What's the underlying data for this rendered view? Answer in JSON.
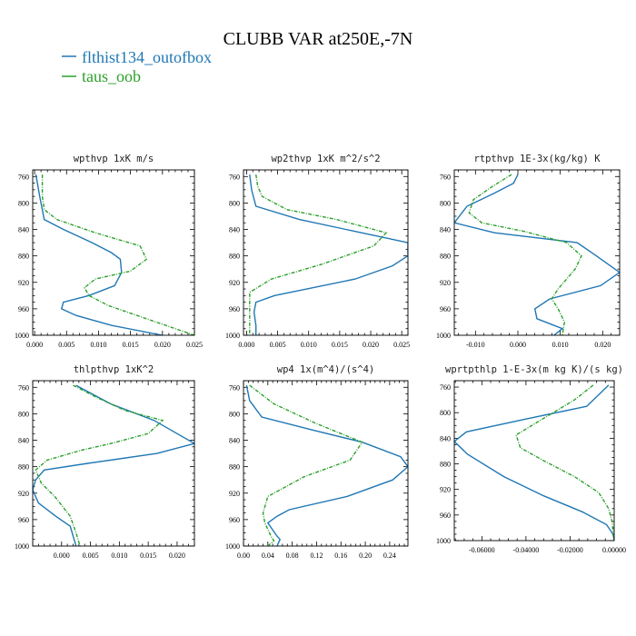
{
  "title": "CLUBB VAR at250E,-7N",
  "legend": {
    "placement": "top-left",
    "entries": [
      {
        "name": "flthist134_outofbox",
        "color": "#1f77b4",
        "dash": "solid"
      },
      {
        "name": "taus_oob",
        "color": "#2ca02c",
        "dash": "dashed"
      }
    ]
  },
  "chart_data": [
    {
      "type": "line",
      "title": "wpthvp  1xK m/s",
      "ylim": [
        1000,
        750
      ],
      "xlim": [
        -0.0003,
        0.025
      ],
      "yticks": [
        760,
        800,
        840,
        880,
        920,
        960,
        1000
      ],
      "xticks": [
        0.0,
        0.005,
        0.01,
        0.015,
        0.02,
        0.025
      ],
      "xtick_labels": [
        "0.000",
        "0.005",
        "0.010",
        "0.015",
        "0.020",
        "0.025"
      ],
      "series": [
        {
          "name": "flthist134_outofbox",
          "x": [
            0.0002,
            0.0008,
            0.0015,
            0.0045,
            0.009,
            0.012,
            0.0134,
            0.0136,
            0.0125,
            0.0085,
            0.0045,
            0.0042,
            0.0065,
            0.012,
            0.02
          ],
          "y": [
            757,
            790,
            825,
            840,
            860,
            875,
            885,
            905,
            925,
            940,
            950,
            960,
            970,
            985,
            1000
          ]
        },
        {
          "name": "taus_oob",
          "x": [
            0.0012,
            0.0012,
            0.0015,
            0.0035,
            0.0095,
            0.0165,
            0.0175,
            0.015,
            0.0095,
            0.0078,
            0.0085,
            0.0115,
            0.0175,
            0.025
          ],
          "y": [
            757,
            790,
            810,
            825,
            845,
            865,
            885,
            903,
            915,
            928,
            940,
            955,
            975,
            1000
          ]
        }
      ]
    },
    {
      "type": "line",
      "title": "wp2thvp  1xK m^2/s^2",
      "ylim": [
        1000,
        750
      ],
      "xlim": [
        -0.0005,
        0.026
      ],
      "yticks": [
        760,
        800,
        840,
        880,
        920,
        960,
        1000
      ],
      "xticks": [
        0.0,
        0.005,
        0.01,
        0.015,
        0.02,
        0.025
      ],
      "xtick_labels": [
        "0.000",
        "0.005",
        "0.010",
        "0.015",
        "0.020",
        "0.025"
      ],
      "series": [
        {
          "name": "flthist134_outofbox",
          "x": [
            0.0005,
            0.0008,
            0.0015,
            0.0085,
            0.016,
            0.026,
            0.026,
            0.0235,
            0.0175,
            0.0045,
            0.0015,
            0.0012,
            0.0015,
            0.0015
          ],
          "y": [
            757,
            780,
            805,
            825,
            840,
            860,
            880,
            895,
            915,
            940,
            950,
            965,
            985,
            1000
          ]
        },
        {
          "name": "taus_oob",
          "x": [
            0.0015,
            0.0018,
            0.0025,
            0.0065,
            0.0145,
            0.0225,
            0.0205,
            0.012,
            0.004,
            0.0005,
            0.0005,
            0.0005
          ],
          "y": [
            757,
            775,
            790,
            810,
            825,
            845,
            865,
            893,
            915,
            935,
            960,
            1000
          ]
        }
      ]
    },
    {
      "type": "line",
      "title": "rtpthvp  1E-3x(kg/kg) K",
      "ylim": [
        1000,
        750
      ],
      "xlim": [
        -0.015,
        0.024
      ],
      "yticks": [
        760,
        800,
        840,
        880,
        920,
        960,
        1000
      ],
      "xticks": [
        -0.01,
        0.0,
        0.01,
        0.02
      ],
      "xtick_labels": [
        "-0.010",
        "0.000",
        "0.010",
        "0.020"
      ],
      "series": [
        {
          "name": "flthist134_outofbox",
          "x": [
            0.0,
            -0.001,
            -0.0055,
            -0.012,
            -0.015,
            -0.0055,
            0.014,
            0.0185,
            0.024,
            0.0195,
            0.0075,
            0.004,
            0.0045,
            0.0105,
            0.0085
          ],
          "y": [
            757,
            770,
            785,
            805,
            830,
            845,
            860,
            880,
            905,
            925,
            945,
            960,
            975,
            990,
            1000
          ]
        },
        {
          "name": "taus_oob",
          "x": [
            -0.0015,
            -0.006,
            -0.0105,
            -0.0115,
            -0.0085,
            0.0015,
            0.0115,
            0.015,
            0.0135,
            0.0095,
            0.008,
            0.0095,
            0.011,
            0.0105
          ],
          "y": [
            757,
            775,
            795,
            815,
            830,
            843,
            860,
            880,
            900,
            930,
            945,
            960,
            980,
            1000
          ]
        }
      ]
    },
    {
      "type": "line",
      "title": "thlpthvp  1xK^2",
      "ylim": [
        1000,
        750
      ],
      "xlim": [
        -0.005,
        0.023
      ],
      "yticks": [
        760,
        800,
        840,
        880,
        920,
        960,
        1000
      ],
      "xticks": [
        0.0,
        0.005,
        0.01,
        0.015,
        0.02
      ],
      "xtick_labels": [
        "0.000",
        "0.005",
        "0.010",
        "0.015",
        "0.020"
      ],
      "series": [
        {
          "name": "flthist134_outofbox",
          "x": [
            0.0025,
            0.0085,
            0.016,
            0.023,
            0.0165,
            0.0045,
            -0.003,
            -0.0045,
            -0.005,
            -0.004,
            -0.001,
            0.0015,
            0.002,
            0.0025
          ],
          "y": [
            757,
            785,
            810,
            845,
            860,
            875,
            885,
            900,
            915,
            935,
            955,
            970,
            985,
            1000
          ]
        },
        {
          "name": "taus_oob",
          "x": [
            0.002,
            0.006,
            0.011,
            0.0175,
            0.015,
            0.0085,
            0.0035,
            -0.0025,
            -0.0045,
            -0.0035,
            -0.0012,
            0.0015,
            0.0025,
            0.0032
          ],
          "y": [
            757,
            775,
            795,
            810,
            830,
            845,
            855,
            870,
            885,
            905,
            925,
            955,
            980,
            1000
          ]
        }
      ]
    },
    {
      "type": "line",
      "title": "wp4  1x(m^4)/(s^4)",
      "ylim": [
        1000,
        750
      ],
      "xlim": [
        0.0,
        0.27
      ],
      "yticks": [
        760,
        800,
        840,
        880,
        920,
        960,
        1000
      ],
      "xticks": [
        0.0,
        0.04,
        0.08,
        0.12,
        0.16,
        0.2,
        0.24
      ],
      "xtick_labels": [
        "0.00",
        "0.04",
        "0.08",
        "0.12",
        "0.16",
        "0.20",
        "0.24"
      ],
      "series": [
        {
          "name": "flthist134_outofbox",
          "x": [
            0.005,
            0.01,
            0.03,
            0.115,
            0.195,
            0.258,
            0.27,
            0.245,
            0.17,
            0.075,
            0.055,
            0.04,
            0.055,
            0.06,
            0.055
          ],
          "y": [
            757,
            780,
            805,
            825,
            843,
            865,
            880,
            900,
            925,
            945,
            955,
            965,
            985,
            990,
            1000
          ]
        },
        {
          "name": "taus_oob",
          "x": [
            0.01,
            0.05,
            0.12,
            0.195,
            0.175,
            0.1,
            0.04,
            0.032,
            0.035,
            0.045,
            0.05,
            0.04
          ],
          "y": [
            757,
            785,
            815,
            843,
            870,
            895,
            925,
            950,
            965,
            985,
            992,
            1000
          ]
        }
      ]
    },
    {
      "type": "line",
      "title": "wprtpthlp  1-E-3x(m kg K)/(s kg)",
      "ylim": [
        1000,
        750
      ],
      "xlim": [
        -0.0725,
        0.0
      ],
      "yticks": [
        760,
        800,
        840,
        880,
        920,
        960,
        1000
      ],
      "xticks": [
        -0.06,
        -0.04,
        -0.02,
        0.0
      ],
      "xtick_labels": [
        "-0.06000",
        "-0.04000",
        "-0.02000",
        "0.00000"
      ],
      "series": [
        {
          "name": "flthist134_outofbox",
          "x": [
            -0.0025,
            -0.0125,
            -0.04,
            -0.067,
            -0.0725,
            -0.0665,
            -0.05,
            -0.032,
            -0.0145,
            -0.0035,
            -0.0005,
            0.0
          ],
          "y": [
            757,
            790,
            810,
            830,
            845,
            865,
            900,
            930,
            955,
            975,
            990,
            1000
          ]
        },
        {
          "name": "taus_oob",
          "x": [
            -0.0095,
            -0.018,
            -0.0325,
            -0.0445,
            -0.0425,
            -0.032,
            -0.018,
            -0.007,
            -0.0025,
            -0.001,
            -0.0005,
            0.0
          ],
          "y": [
            757,
            780,
            810,
            835,
            855,
            875,
            900,
            925,
            950,
            970,
            985,
            1000
          ]
        }
      ]
    }
  ]
}
